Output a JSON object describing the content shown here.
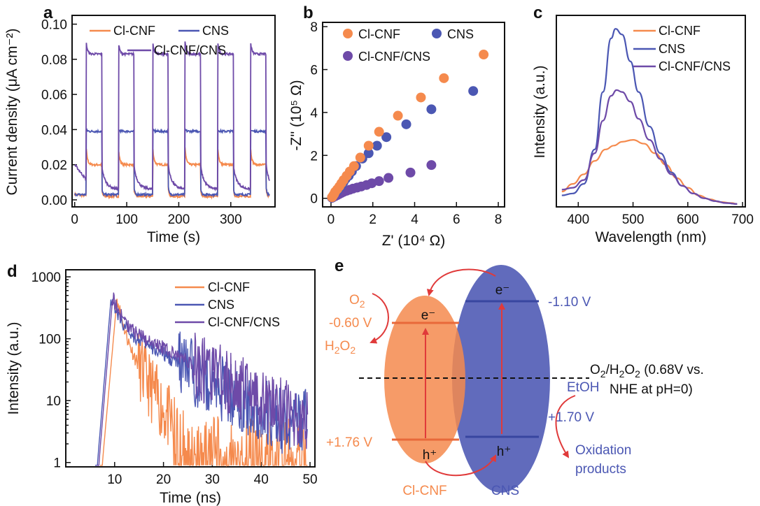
{
  "colors": {
    "cl_cnf": "#f58a4d",
    "cns": "#4b57b3",
    "composite": "#6e4aa8",
    "arrow": "#e03a3a",
    "black": "#111111"
  },
  "panel_labels": {
    "a": "a",
    "b": "b",
    "c": "c",
    "d": "d",
    "e": "e"
  },
  "chart_data": [
    {
      "id": "a",
      "type": "line",
      "xlabel": "Time (s)",
      "ylabel": "Current density (μA cm⁻²)",
      "xlim": [
        -5,
        385
      ],
      "ylim": [
        -0.004,
        0.105
      ],
      "xticks": [
        0,
        100,
        200,
        300
      ],
      "yticks": [
        0.0,
        0.02,
        0.04,
        0.06,
        0.08,
        0.1
      ],
      "ytick_labels": [
        "0.00",
        "0.02",
        "0.04",
        "0.06",
        "0.08",
        "0.10"
      ],
      "light_on_intervals": [
        [
          22,
          52
        ],
        [
          84,
          114
        ],
        [
          150,
          180
        ],
        [
          212,
          242
        ],
        [
          275,
          305
        ],
        [
          338,
          368
        ]
      ],
      "series": [
        {
          "name": "Cl-CNF",
          "color_key": "cl_cnf",
          "dark": 0.002,
          "on_peak": 0.03,
          "on_steady": 0.02,
          "pre_dark": 0.003
        },
        {
          "name": "CNS",
          "color_key": "cns",
          "dark": 0.003,
          "on_peak": 0.04,
          "on_steady": 0.039,
          "pre_dark": 0.003
        },
        {
          "name": "Cl-CNF/CNS",
          "color_key": "composite",
          "dark": 0.006,
          "on_peak": 0.09,
          "on_steady": 0.083,
          "pre_dark": 0.02
        }
      ]
    },
    {
      "id": "b",
      "type": "scatter",
      "xlabel": "Z' (10⁴ Ω)",
      "ylabel": "-Z'' (10⁵ Ω)",
      "xlim": [
        -0.4,
        8.3
      ],
      "ylim": [
        -0.4,
        8.2
      ],
      "xticks": [
        0,
        2,
        4,
        6,
        8
      ],
      "yticks": [
        0,
        2,
        4,
        6,
        8
      ],
      "series": [
        {
          "name": "Cl-CNF",
          "color_key": "cl_cnf",
          "x": [
            0.05,
            0.1,
            0.15,
            0.2,
            0.3,
            0.4,
            0.5,
            0.6,
            0.75,
            0.9,
            1.1,
            1.4,
            1.8,
            2.3,
            3.2,
            4.3,
            5.4,
            7.3
          ],
          "y": [
            0.05,
            0.12,
            0.2,
            0.3,
            0.42,
            0.55,
            0.7,
            0.85,
            1.05,
            1.25,
            1.5,
            1.9,
            2.45,
            3.1,
            3.85,
            4.7,
            5.6,
            6.7
          ]
        },
        {
          "name": "CNS",
          "color_key": "cns",
          "x": [
            0.05,
            0.1,
            0.15,
            0.2,
            0.3,
            0.4,
            0.5,
            0.6,
            0.7,
            0.85,
            1.0,
            1.2,
            1.5,
            1.8,
            2.2,
            2.65,
            3.6,
            4.8,
            6.8
          ],
          "y": [
            0.04,
            0.1,
            0.17,
            0.25,
            0.35,
            0.47,
            0.6,
            0.75,
            0.9,
            1.05,
            1.25,
            1.5,
            1.85,
            2.1,
            2.45,
            2.85,
            3.45,
            4.15,
            5.0
          ]
        },
        {
          "name": "Cl-CNF/CNS",
          "color_key": "composite",
          "x": [
            0.05,
            0.1,
            0.2,
            0.3,
            0.4,
            0.5,
            0.6,
            0.75,
            0.9,
            1.05,
            1.25,
            1.45,
            1.7,
            1.95,
            2.3,
            2.75,
            3.8,
            4.8
          ],
          "y": [
            0.02,
            0.05,
            0.1,
            0.15,
            0.2,
            0.25,
            0.3,
            0.35,
            0.4,
            0.45,
            0.5,
            0.55,
            0.62,
            0.7,
            0.8,
            0.95,
            1.2,
            1.55
          ]
        }
      ]
    },
    {
      "id": "c",
      "type": "line",
      "xlabel": "Wavelength (nm)",
      "ylabel": "Intensity (a.u.)",
      "xlim": [
        360,
        705
      ],
      "xticks": [
        400,
        500,
        600,
        700
      ],
      "ylim": [
        0,
        100
      ],
      "series": [
        {
          "name": "Cl-CNF",
          "color_key": "cl_cnf",
          "x": [
            370,
            390,
            410,
            430,
            450,
            465,
            480,
            500,
            520,
            540,
            560,
            580,
            600,
            620,
            640,
            660,
            680,
            690
          ],
          "y": [
            8,
            12,
            17,
            24,
            30,
            32,
            34,
            35,
            33,
            28,
            22,
            15,
            10,
            6,
            4,
            2.5,
            2,
            1.5
          ]
        },
        {
          "name": "CNS",
          "color_key": "cns",
          "x": [
            370,
            390,
            410,
            430,
            445,
            460,
            468,
            480,
            495,
            510,
            530,
            550,
            570,
            590,
            610,
            630,
            650,
            670,
            690
          ],
          "y": [
            6,
            7,
            12,
            30,
            60,
            88,
            93,
            90,
            76,
            60,
            42,
            28,
            18,
            11,
            7,
            4.5,
            3,
            2,
            1.5
          ]
        },
        {
          "name": "Cl-CNF/CNS",
          "color_key": "composite",
          "x": [
            370,
            390,
            410,
            430,
            445,
            460,
            470,
            480,
            495,
            510,
            530,
            550,
            570,
            590,
            610,
            630,
            650,
            670,
            690
          ],
          "y": [
            9,
            10,
            14,
            28,
            45,
            58,
            61,
            60,
            55,
            46,
            35,
            25,
            17,
            11,
            7,
            4.5,
            3,
            2,
            1.5
          ]
        }
      ]
    },
    {
      "id": "d",
      "type": "line",
      "xlabel": "Time (ns)",
      "ylabel": "Intensity (a.u.)",
      "xlim": [
        0,
        51
      ],
      "xticks": [
        10,
        20,
        30,
        40,
        50
      ],
      "yscale": "log",
      "ylim": [
        0.85,
        1300
      ],
      "yticks": [
        1,
        10,
        100,
        1000
      ],
      "ytick_labels": [
        "1",
        "10",
        "100",
        "1000"
      ],
      "series": [
        {
          "name": "Cl-CNF",
          "color_key": "cl_cnf",
          "onset": 7.5,
          "peak_x": 10.5,
          "peak": 460,
          "tau1": 0.9,
          "tau2": 3.2,
          "frac": 0.7,
          "noise_floor": 1.6
        },
        {
          "name": "CNS",
          "color_key": "cns",
          "onset": 6.5,
          "peak_x": 9.3,
          "peak": 490,
          "tau1": 1.2,
          "tau2": 9.5,
          "frac": 0.65,
          "noise_floor": 4.5
        },
        {
          "name": "Cl-CNF/CNS",
          "color_key": "composite",
          "onset": 6.8,
          "peak_x": 9.6,
          "peak": 470,
          "tau1": 1.3,
          "tau2": 10.5,
          "frac": 0.6,
          "noise_floor": 5.0
        }
      ]
    }
  ],
  "diagram_e": {
    "cl_cnf_label": "Cl-CNF",
    "cns_label": "CNS",
    "o2": "O",
    "o2_sub": "2",
    "h2o2_h": "H",
    "h2o2_sub1": "2",
    "h2o2_o": "O",
    "h2o2_sub2": "2",
    "cb_cl": "-0.60 V",
    "vb_cl": "+1.76 V",
    "cb_cns": "-1.10 V",
    "vb_cns": "+1.70 V",
    "electron": "e⁻",
    "hole": "h⁺",
    "etoh": "EtOH",
    "oxidation_1": "Oxidation",
    "oxidation_2": "products",
    "redox_line1_a": "O",
    "redox_line1_sub1": "2",
    "redox_line1_b": "/H",
    "redox_line1_sub2": "2",
    "redox_line1_c": "O",
    "redox_line1_sub3": "2",
    "redox_line1_d": " (0.68V vs.",
    "redox_line2": "NHE at pH=0)"
  }
}
